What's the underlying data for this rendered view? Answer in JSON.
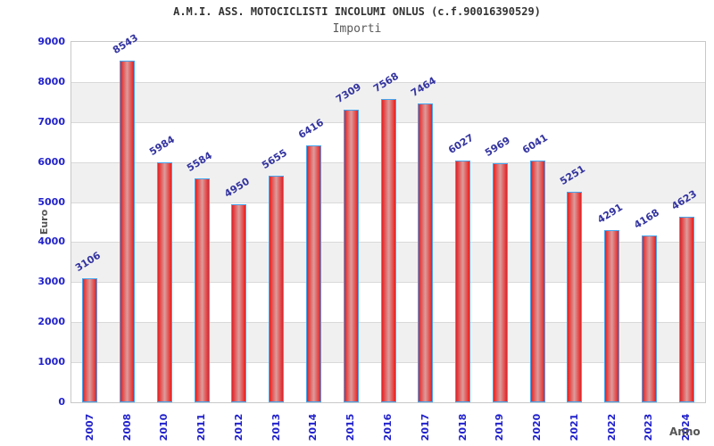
{
  "header": {
    "title": "A.M.I. ASS. MOTOCICLISTI INCOLUMI ONLUS (c.f.90016390529)",
    "subtitle": "Importi"
  },
  "chart_data": {
    "type": "bar",
    "title": "A.M.I. ASS. MOTOCICLISTI INCOLUMI ONLUS (c.f.90016390529)",
    "subtitle": "Importi",
    "xlabel": "Anno",
    "ylabel": "Euro",
    "categories": [
      "2007",
      "2008",
      "2010",
      "2011",
      "2012",
      "2013",
      "2014",
      "2015",
      "2016",
      "2017",
      "2018",
      "2019",
      "2020",
      "2021",
      "2022",
      "2023",
      "2024"
    ],
    "values": [
      3106,
      8543,
      5984,
      5584,
      4950,
      5655,
      6416,
      7309,
      7568,
      7464,
      6027,
      5969,
      6041,
      5251,
      4291,
      4168,
      4623
    ],
    "ylim": [
      0,
      9000
    ],
    "ytick_step": 1000,
    "grid": true,
    "legend": "none",
    "colors": {
      "bar_edge": "#e62020",
      "bar_mid": "#dd9c9c",
      "bar_border": "#44a4ee",
      "tick_label": "#2222cc",
      "value_label": "#3333a0",
      "band_gray": "#f0f0f0",
      "gridline": "#d9d9d9",
      "plot_border": "#c8c8c8",
      "axis_title": "#555555",
      "title": "#333333",
      "subtitle": "#5a5a5a"
    }
  }
}
